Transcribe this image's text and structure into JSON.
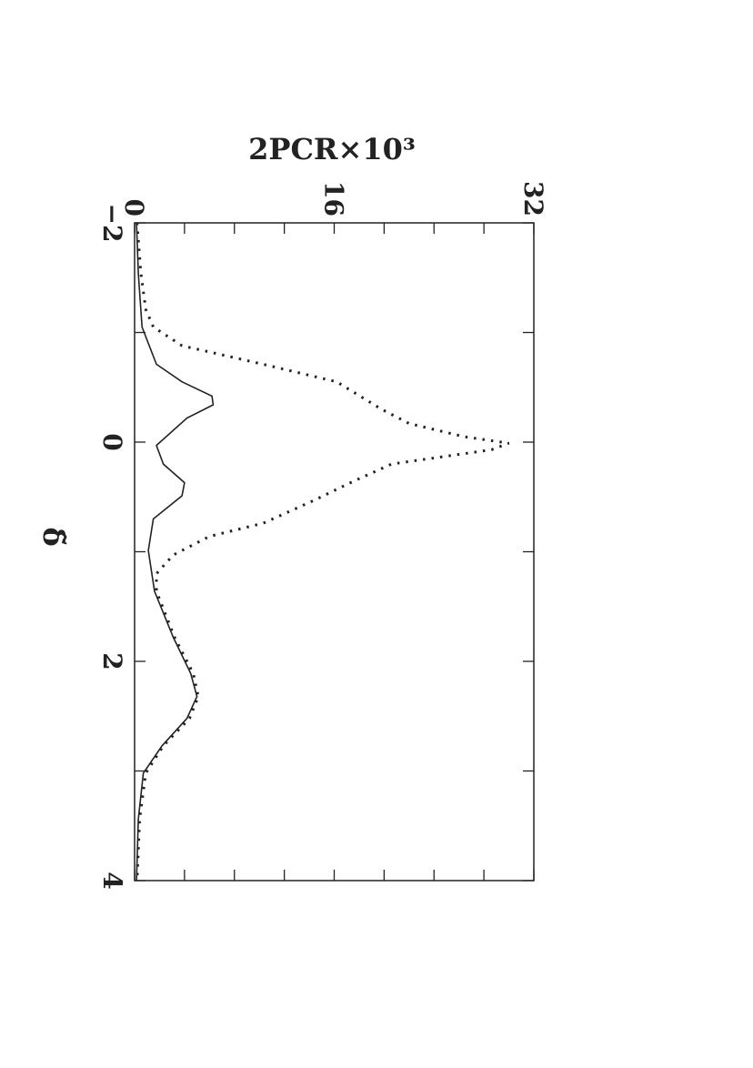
{
  "chart_data": {
    "type": "line",
    "title": "2PCR×10³",
    "xlabel": "δ̃",
    "xlim": [
      -2,
      4
    ],
    "xticks": [
      {
        "value": -2,
        "label": "−2"
      },
      {
        "value": -1,
        "label": null
      },
      0,
      {
        "value": 1,
        "label": null
      },
      2,
      {
        "value": 3,
        "label": null
      },
      4
    ],
    "ylim": [
      0,
      32
    ],
    "yticks": [
      0,
      {
        "value": 4,
        "label": null
      },
      {
        "value": 8,
        "label": null
      },
      {
        "value": 12,
        "label": null
      },
      16,
      {
        "value": 20,
        "label": null
      },
      {
        "value": 24,
        "label": null
      },
      {
        "value": 28,
        "label": null
      },
      32
    ],
    "series": [
      {
        "color": "#222222",
        "dash": "solid",
        "x": [
          -2,
          -1.54,
          -1.05,
          -0.71,
          -0.55,
          -0.42,
          -0.34,
          -0.22,
          0.03,
          0.2,
          0.37,
          0.49,
          0.7,
          0.99,
          1.36,
          1.78,
          2.11,
          2.32,
          2.52,
          2.77,
          3.02,
          3.44,
          4
        ],
        "values": [
          0.15,
          0.3,
          0.6,
          1.75,
          3.8,
          6.2,
          6.3,
          4.2,
          1.75,
          2.3,
          4.0,
          3.8,
          1.5,
          1.1,
          1.6,
          3.1,
          4.5,
          5.0,
          4.2,
          2.2,
          0.7,
          0.3,
          0.15
        ]
      },
      {
        "color": "#222222",
        "dash": "dotted",
        "x": [
          -2,
          -1.54,
          -1.21,
          -1.05,
          -0.88,
          -0.71,
          -0.55,
          -0.3,
          -0.17,
          -0.05,
          0.01,
          0.07,
          0.2,
          0.37,
          0.53,
          0.74,
          0.86,
          1.03,
          1.2,
          1.36,
          1.78,
          2.11,
          2.32,
          2.52,
          2.77,
          3.02,
          3.44,
          4
        ],
        "values": [
          0.2,
          0.5,
          0.9,
          1.5,
          3.8,
          10.3,
          16.2,
          19.8,
          22.0,
          26.4,
          30.0,
          28.6,
          20.6,
          17.3,
          14.4,
          10.3,
          6.0,
          3.1,
          1.75,
          1.75,
          3.2,
          4.7,
          5.1,
          4.4,
          2.3,
          0.9,
          0.4,
          0.2
        ]
      }
    ]
  }
}
